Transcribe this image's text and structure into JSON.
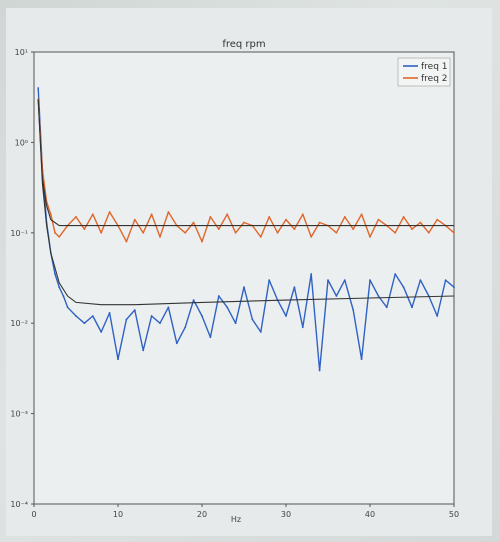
{
  "chart_data": {
    "type": "line",
    "title": "freq rpm",
    "xlabel": "Hz",
    "ylabel": "",
    "xlim": [
      0,
      50
    ],
    "ylim": [
      -4,
      1
    ],
    "yscale": "log",
    "xticks": [
      "0",
      "10",
      "20",
      "30",
      "40",
      "50"
    ],
    "yticks": [
      "10¹",
      "10⁰",
      "10⁻¹",
      "10⁻²",
      "10⁻³",
      "10⁻⁴"
    ],
    "legend_position": "top-right",
    "grid": false,
    "colors": {
      "freq1": "#2f62c4",
      "freq2": "#e0662a",
      "fit": "#333333"
    },
    "series": [
      {
        "name": "freq 1",
        "color": "#2f62c4",
        "x": [
          0.5,
          1,
          1.5,
          2,
          2.5,
          3,
          3.5,
          4,
          5,
          6,
          7,
          8,
          9,
          10,
          11,
          12,
          13,
          14,
          15,
          16,
          17,
          18,
          19,
          20,
          21,
          22,
          23,
          24,
          25,
          26,
          27,
          28,
          29,
          30,
          31,
          32,
          33,
          34,
          35,
          36,
          37,
          38,
          39,
          40,
          41,
          42,
          43,
          44,
          45,
          46,
          47,
          48,
          49,
          50
        ],
        "values": [
          4,
          0.5,
          0.13,
          0.06,
          0.035,
          0.025,
          0.02,
          0.015,
          0.012,
          0.01,
          0.012,
          0.008,
          0.013,
          0.004,
          0.011,
          0.014,
          0.005,
          0.012,
          0.01,
          0.015,
          0.006,
          0.009,
          0.018,
          0.012,
          0.007,
          0.02,
          0.015,
          0.01,
          0.025,
          0.011,
          0.008,
          0.03,
          0.018,
          0.012,
          0.025,
          0.009,
          0.035,
          0.003,
          0.03,
          0.02,
          0.03,
          0.014,
          0.004,
          0.03,
          0.02,
          0.015,
          0.035,
          0.025,
          0.015,
          0.03,
          0.02,
          0.012,
          0.03,
          0.025
        ]
      },
      {
        "name": "freq 2",
        "color": "#e0662a",
        "x": [
          0.5,
          1,
          1.5,
          2,
          2.5,
          3,
          4,
          5,
          6,
          7,
          8,
          9,
          10,
          11,
          12,
          13,
          14,
          15,
          16,
          17,
          18,
          19,
          20,
          21,
          22,
          23,
          24,
          25,
          26,
          27,
          28,
          29,
          30,
          31,
          32,
          33,
          34,
          35,
          36,
          37,
          38,
          39,
          40,
          41,
          42,
          43,
          44,
          45,
          46,
          47,
          48,
          49,
          50
        ],
        "values": [
          3,
          0.5,
          0.22,
          0.16,
          0.1,
          0.09,
          0.12,
          0.15,
          0.11,
          0.16,
          0.1,
          0.17,
          0.12,
          0.08,
          0.14,
          0.1,
          0.16,
          0.09,
          0.17,
          0.12,
          0.1,
          0.13,
          0.08,
          0.15,
          0.11,
          0.16,
          0.1,
          0.13,
          0.12,
          0.09,
          0.15,
          0.1,
          0.14,
          0.11,
          0.16,
          0.09,
          0.13,
          0.12,
          0.1,
          0.15,
          0.11,
          0.16,
          0.09,
          0.14,
          0.12,
          0.1,
          0.15,
          0.11,
          0.13,
          0.1,
          0.14,
          0.12,
          0.1
        ]
      }
    ],
    "fit_lines": [
      {
        "x": [
          0.5,
          1,
          1.5,
          2,
          3,
          4,
          5,
          8,
          12,
          20,
          30,
          40,
          50
        ],
        "values": [
          3,
          0.35,
          0.12,
          0.06,
          0.028,
          0.02,
          0.017,
          0.016,
          0.016,
          0.017,
          0.018,
          0.019,
          0.02
        ]
      },
      {
        "x": [
          0.5,
          1,
          1.5,
          2,
          3,
          4,
          5,
          10,
          20,
          30,
          40,
          50
        ],
        "values": [
          3,
          0.4,
          0.2,
          0.14,
          0.12,
          0.12,
          0.12,
          0.12,
          0.12,
          0.12,
          0.12,
          0.12
        ]
      }
    ]
  }
}
